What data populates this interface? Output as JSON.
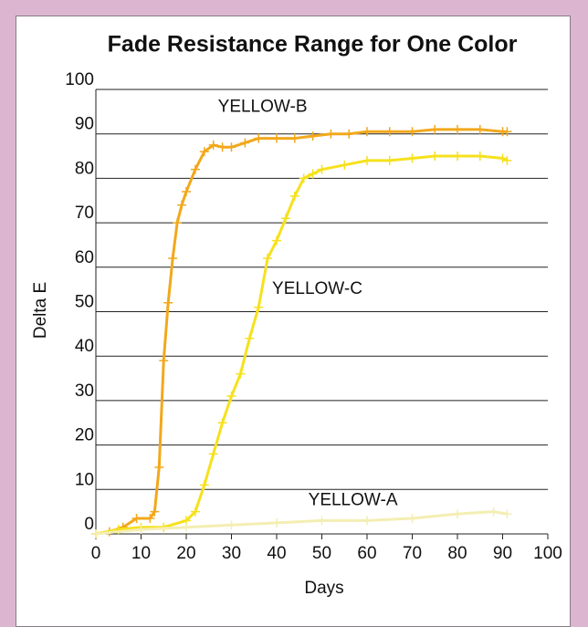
{
  "chart_data": {
    "type": "line",
    "title": "Fade Resistance Range for One Color",
    "x_label": "Days",
    "y_label": "Delta E",
    "xlim": [
      0,
      100
    ],
    "xticks": [
      0,
      10,
      20,
      30,
      40,
      50,
      60,
      70,
      80,
      90,
      100
    ],
    "ylim": [
      0,
      100
    ],
    "yticks": [
      0,
      10,
      20,
      30,
      40,
      50,
      60,
      70,
      80,
      90,
      100
    ],
    "grid": true,
    "annotations": [
      "YELLOW-B",
      "YELLOW-C",
      "YELLOW-A"
    ],
    "series": [
      {
        "name": "YELLOW-B",
        "color": "#f2a81c",
        "x": [
          0,
          3,
          6,
          9,
          12,
          13,
          14,
          15,
          16,
          17,
          18,
          19,
          20,
          22,
          24,
          26,
          28,
          30,
          33,
          36,
          40,
          44,
          48,
          52,
          56,
          60,
          65,
          70,
          75,
          80,
          85,
          90,
          91
        ],
        "values": [
          0,
          0.5,
          1.5,
          3.5,
          3.5,
          5,
          15,
          39,
          52,
          62,
          70,
          74,
          77,
          82,
          86,
          87.5,
          87,
          87,
          88,
          89,
          89,
          89,
          89.5,
          90,
          90,
          90.5,
          90.5,
          90.5,
          91,
          91,
          91,
          90.5,
          90.5
        ]
      },
      {
        "name": "YELLOW-C",
        "color": "#f6e11c",
        "x": [
          0,
          5,
          10,
          15,
          20,
          22,
          24,
          26,
          28,
          30,
          32,
          34,
          36,
          38,
          40,
          42,
          44,
          46,
          48,
          50,
          55,
          60,
          65,
          70,
          75,
          80,
          85,
          90,
          91
        ],
        "values": [
          0,
          1,
          1.5,
          1.5,
          3,
          5,
          11,
          18,
          25,
          31,
          36,
          44,
          51,
          62,
          66,
          71,
          76,
          80,
          81,
          82,
          83,
          84,
          84,
          84.5,
          85,
          85,
          85,
          84.5,
          84
        ]
      },
      {
        "name": "YELLOW-A",
        "color": "#f4eeb2",
        "x": [
          0,
          10,
          20,
          30,
          40,
          50,
          60,
          70,
          80,
          88,
          91
        ],
        "values": [
          0,
          1,
          1.5,
          2,
          2.5,
          3,
          3,
          3.5,
          4.5,
          5,
          4.5
        ]
      }
    ]
  }
}
